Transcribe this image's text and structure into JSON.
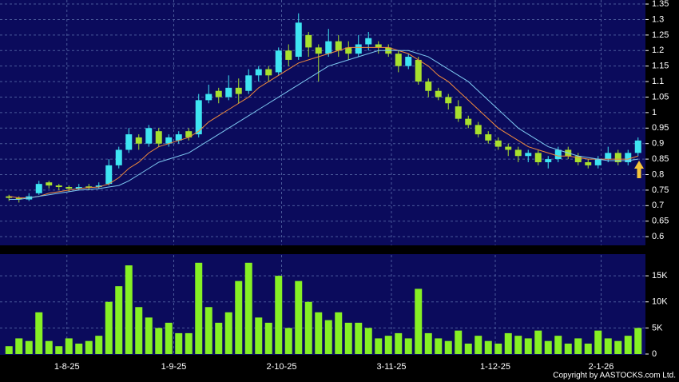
{
  "chart_data": [
    {
      "type": "candlestick",
      "open": [
        0.73,
        0.725,
        0.72,
        0.74,
        0.775,
        0.765,
        0.76,
        0.755,
        0.762,
        0.76,
        0.77,
        0.83,
        0.88,
        0.92,
        0.9,
        0.94,
        0.9,
        0.91,
        0.94,
        0.93,
        1.04,
        1.07,
        1.05,
        1.08,
        1.07,
        1.12,
        1.14,
        1.13,
        1.2,
        1.18,
        1.25,
        1.21,
        1.19,
        1.23,
        1.21,
        1.19,
        1.22,
        1.22,
        1.21,
        1.19,
        1.15,
        1.17,
        1.1,
        1.07,
        1.05,
        1.02,
        0.98,
        0.96,
        0.93,
        0.91,
        0.89,
        0.88,
        0.86,
        0.87,
        0.84,
        0.85,
        0.88,
        0.86,
        0.84,
        0.83,
        0.85,
        0.87,
        0.84,
        0.87
      ],
      "high": [
        0.735,
        0.73,
        0.74,
        0.78,
        0.78,
        0.77,
        0.765,
        0.77,
        0.77,
        0.775,
        0.85,
        0.89,
        0.95,
        0.93,
        0.96,
        0.95,
        0.93,
        0.94,
        0.95,
        1.06,
        1.09,
        1.08,
        1.12,
        1.11,
        1.14,
        1.15,
        1.15,
        1.21,
        1.22,
        1.32,
        1.26,
        1.22,
        1.27,
        1.25,
        1.23,
        1.25,
        1.26,
        1.23,
        1.22,
        1.2,
        1.19,
        1.18,
        1.11,
        1.08,
        1.06,
        1.04,
        0.99,
        0.97,
        0.94,
        0.92,
        0.9,
        0.89,
        0.88,
        0.88,
        0.86,
        0.89,
        0.89,
        0.87,
        0.85,
        0.86,
        0.89,
        0.88,
        0.88,
        0.92
      ],
      "low": [
        0.715,
        0.71,
        0.715,
        0.735,
        0.755,
        0.75,
        0.745,
        0.75,
        0.75,
        0.755,
        0.765,
        0.82,
        0.87,
        0.88,
        0.89,
        0.89,
        0.89,
        0.9,
        0.91,
        0.92,
        1.03,
        1.03,
        1.04,
        1.03,
        1.06,
        1.1,
        1.1,
        1.12,
        1.15,
        1.17,
        1.18,
        1.1,
        1.18,
        1.18,
        1.17,
        1.18,
        1.2,
        1.19,
        1.18,
        1.13,
        1.14,
        1.09,
        1.05,
        1.04,
        1.01,
        0.97,
        0.95,
        0.92,
        0.9,
        0.88,
        0.86,
        0.84,
        0.84,
        0.83,
        0.82,
        0.84,
        0.85,
        0.83,
        0.82,
        0.82,
        0.84,
        0.83,
        0.83,
        0.86
      ],
      "close": [
        0.725,
        0.72,
        0.73,
        0.77,
        0.765,
        0.76,
        0.755,
        0.76,
        0.758,
        0.765,
        0.83,
        0.88,
        0.93,
        0.9,
        0.95,
        0.9,
        0.92,
        0.93,
        0.92,
        1.04,
        1.06,
        1.05,
        1.08,
        1.06,
        1.12,
        1.14,
        1.12,
        1.2,
        1.17,
        1.29,
        1.21,
        1.19,
        1.23,
        1.2,
        1.19,
        1.22,
        1.24,
        1.21,
        1.19,
        1.15,
        1.18,
        1.1,
        1.07,
        1.05,
        1.03,
        0.98,
        0.96,
        0.93,
        0.91,
        0.89,
        0.88,
        0.86,
        0.87,
        0.84,
        0.85,
        0.88,
        0.86,
        0.84,
        0.83,
        0.85,
        0.87,
        0.84,
        0.87,
        0.91
      ],
      "up_color": "#3ee4f2",
      "down_color": "#a8e02e",
      "series": [
        {
          "color": "#f08a3c",
          "values": [
            0.73,
            0.725,
            0.725,
            0.73,
            0.74,
            0.745,
            0.75,
            0.755,
            0.758,
            0.76,
            0.77,
            0.79,
            0.82,
            0.84,
            0.87,
            0.89,
            0.9,
            0.91,
            0.92,
            0.94,
            0.97,
            0.99,
            1.01,
            1.03,
            1.05,
            1.08,
            1.1,
            1.12,
            1.14,
            1.16,
            1.17,
            1.18,
            1.19,
            1.2,
            1.21,
            1.21,
            1.21,
            1.21,
            1.21,
            1.2,
            1.19,
            1.17,
            1.15,
            1.12,
            1.1,
            1.07,
            1.04,
            1.01,
            0.98,
            0.95,
            0.93,
            0.91,
            0.89,
            0.88,
            0.87,
            0.86,
            0.86,
            0.855,
            0.85,
            0.85,
            0.85,
            0.85,
            0.85,
            0.86
          ]
        },
        {
          "color": "#7ec8f0",
          "values": [
            0.72,
            0.72,
            0.725,
            0.73,
            0.735,
            0.74,
            0.745,
            0.75,
            0.752,
            0.755,
            0.76,
            0.765,
            0.78,
            0.8,
            0.82,
            0.84,
            0.85,
            0.86,
            0.87,
            0.89,
            0.91,
            0.93,
            0.95,
            0.97,
            0.99,
            1.01,
            1.03,
            1.05,
            1.07,
            1.09,
            1.11,
            1.13,
            1.15,
            1.16,
            1.17,
            1.18,
            1.19,
            1.2,
            1.2,
            1.2,
            1.2,
            1.19,
            1.18,
            1.16,
            1.14,
            1.12,
            1.1,
            1.07,
            1.04,
            1.01,
            0.98,
            0.95,
            0.93,
            0.91,
            0.89,
            0.88,
            0.87,
            0.86,
            0.855,
            0.85,
            0.845,
            0.845,
            0.845,
            0.85
          ]
        }
      ],
      "ylim": [
        0.572,
        1.363
      ],
      "yticks": [
        0.6,
        0.65,
        0.7,
        0.75,
        0.8,
        0.85,
        0.9,
        0.95,
        1,
        1.05,
        1.1,
        1.15,
        1.2,
        1.25,
        1.3,
        1.35
      ],
      "grid": true
    },
    {
      "type": "bar",
      "values": [
        1500,
        3000,
        2500,
        8000,
        2500,
        1500,
        3000,
        2000,
        2500,
        3500,
        10000,
        13000,
        17000,
        9000,
        7000,
        5000,
        6000,
        4000,
        4000,
        17500,
        9000,
        6000,
        8000,
        14000,
        17500,
        7000,
        6000,
        15000,
        5000,
        14000,
        10000,
        8000,
        6500,
        8000,
        6000,
        6000,
        5000,
        3000,
        3500,
        4000,
        3000,
        12500,
        4000,
        3000,
        2500,
        4500,
        2000,
        3500,
        2500,
        2000,
        4000,
        3500,
        3000,
        4500,
        2500,
        3500,
        2000,
        3000,
        2000,
        4500,
        3000,
        2500,
        3500,
        5000
      ],
      "color": "#86f024",
      "ylim": [
        0,
        19000
      ],
      "yticks": [
        0,
        {
          "value": 5000,
          "label": "5K"
        },
        {
          "value": 10000,
          "label": "10K"
        },
        {
          "value": 15000,
          "label": "15K"
        }
      ],
      "xticks": [
        {
          "value": 5.8,
          "label": "1-8-25"
        },
        {
          "value": 16.5,
          "label": "1-9-25"
        },
        {
          "value": 27.3,
          "label": "2-10-25"
        },
        {
          "value": 38.3,
          "label": "3-11-25"
        },
        {
          "value": 48.7,
          "label": "1-12-25"
        },
        {
          "value": 59.3,
          "label": "2-1-26"
        }
      ],
      "grid": true
    }
  ],
  "footer": "Copyright by AASTOCKS.com Ltd."
}
